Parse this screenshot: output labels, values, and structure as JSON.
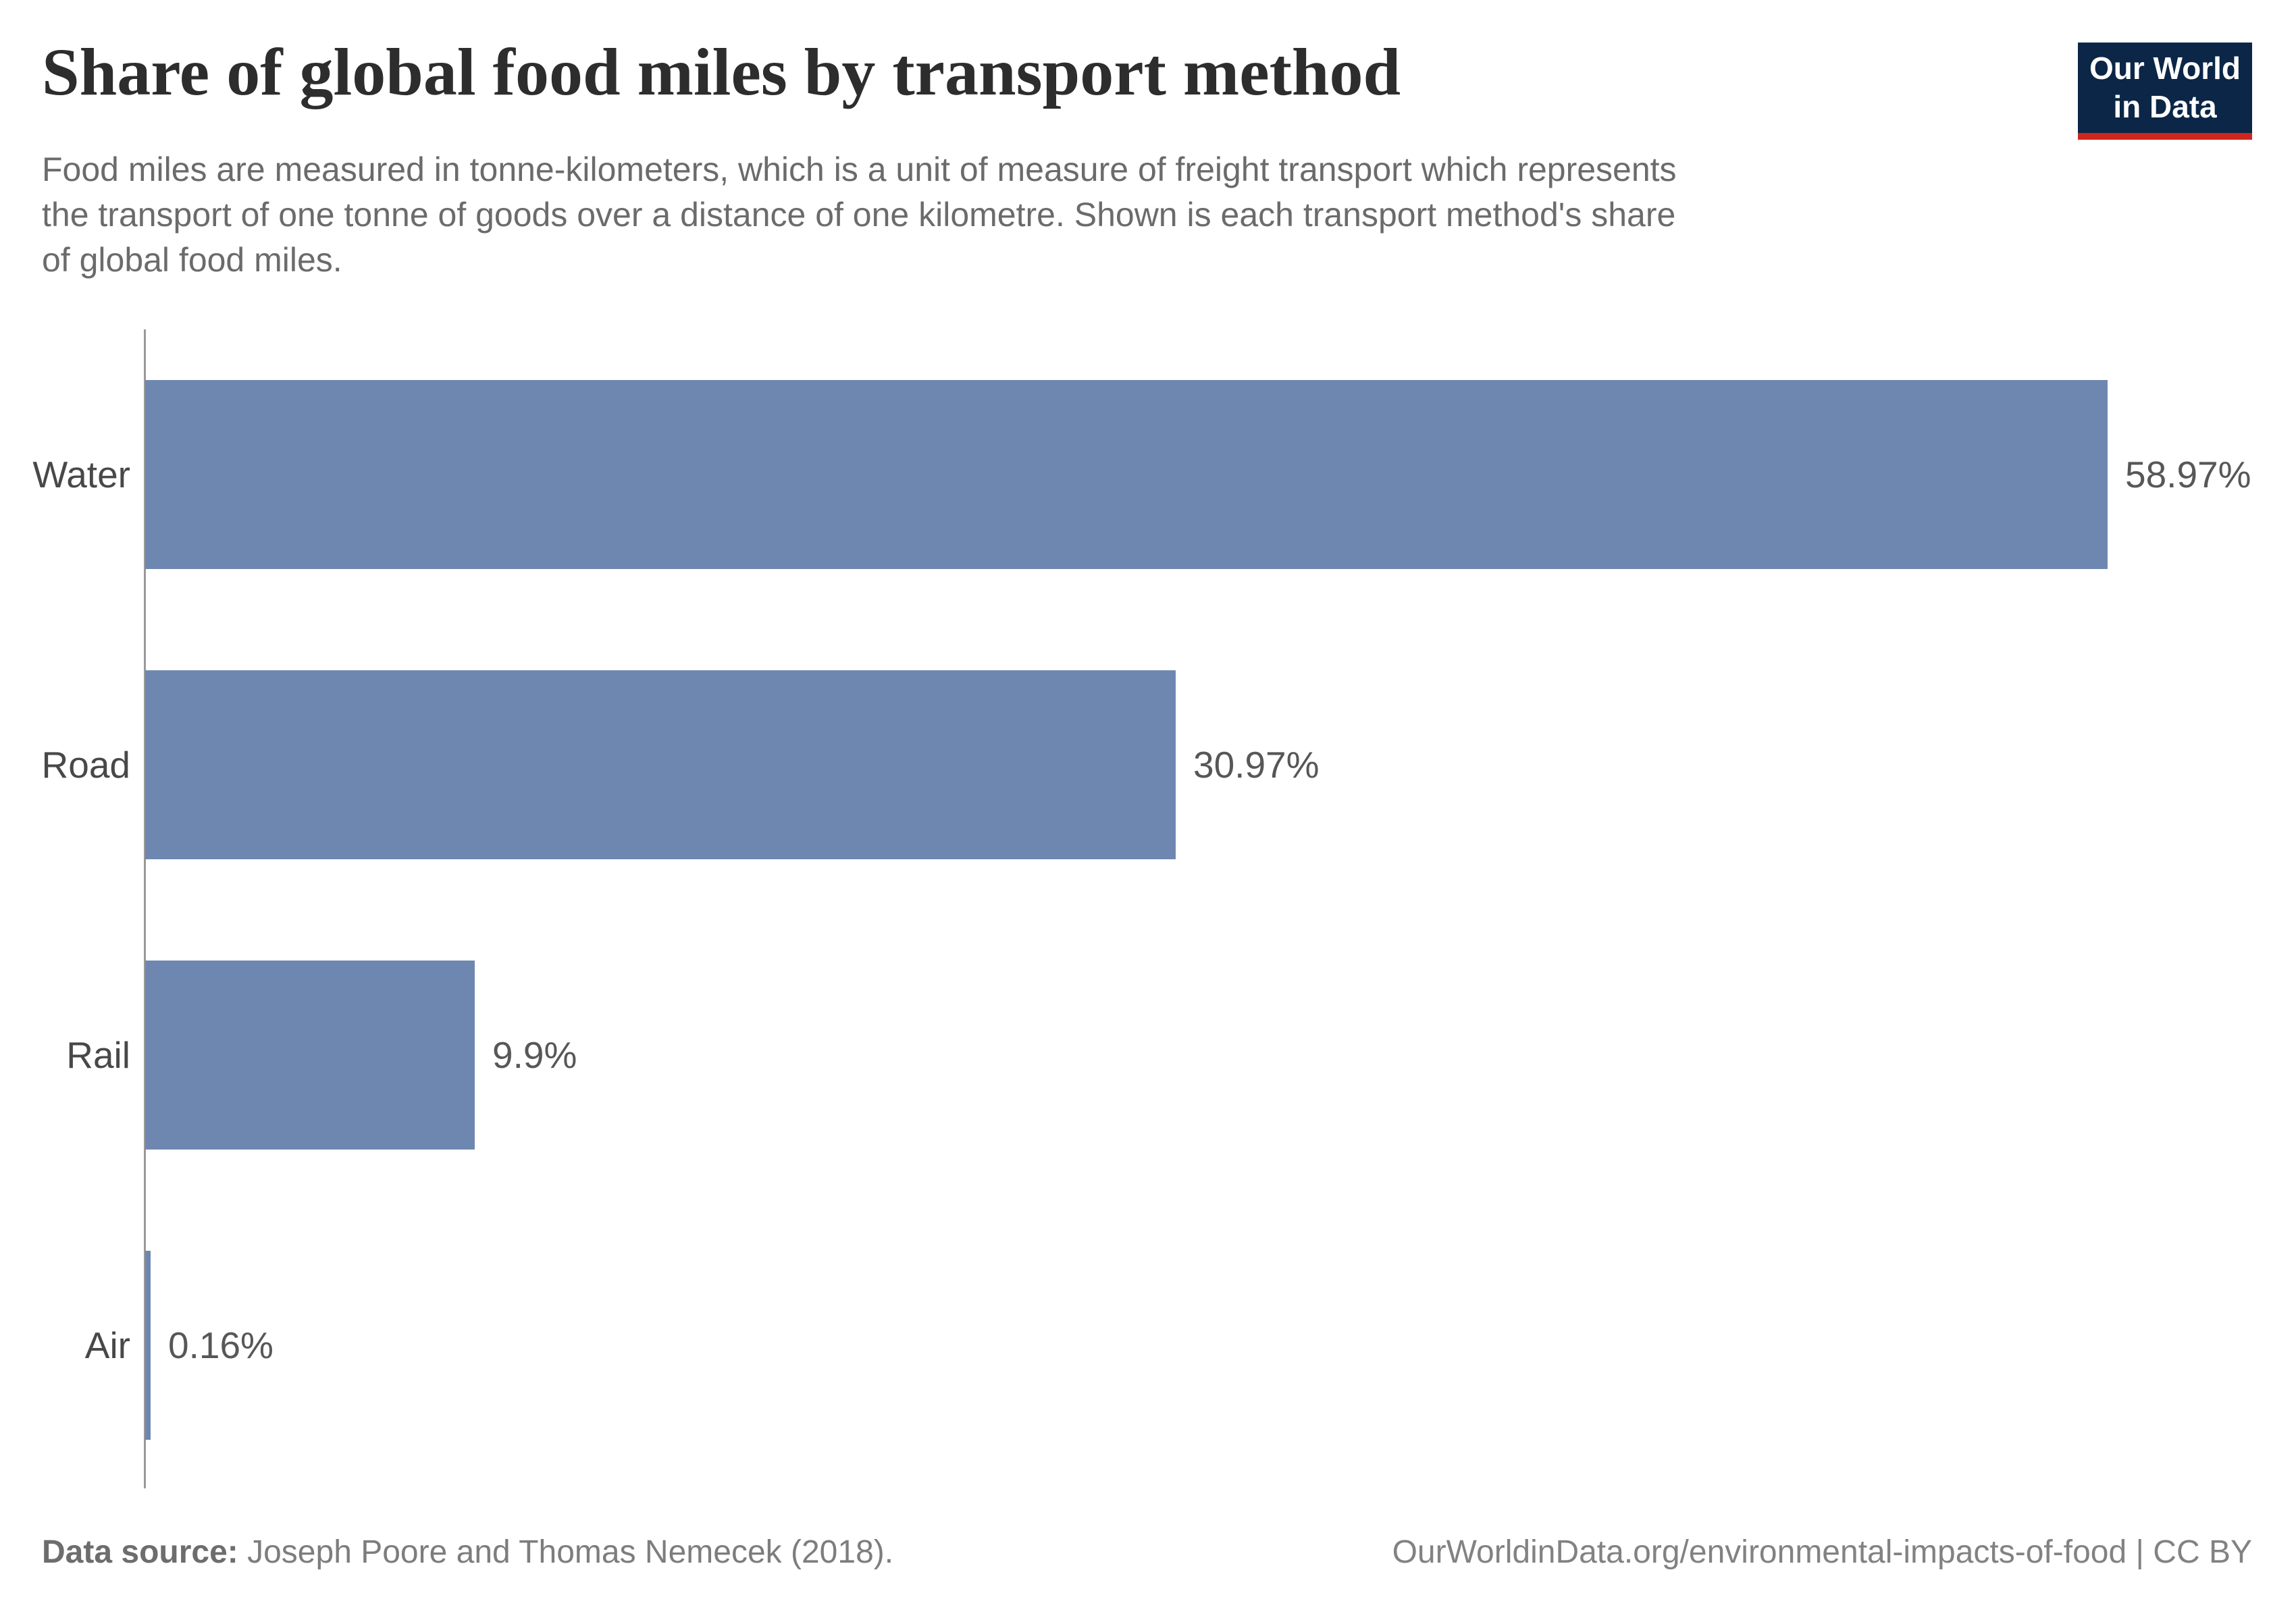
{
  "header": {
    "title": "Share of global food miles by transport method",
    "subtitle": "Food miles are measured in tonne-kilometers, which is a unit of measure of freight transport which represents\nthe transport of one tonne of goods over a distance of one kilometre. Shown is each transport method's share\nof global food miles."
  },
  "logo": {
    "line1": "Our World",
    "line2": "in Data",
    "bg_color": "#0b2647",
    "accent_color": "#ce261d"
  },
  "chart_data": {
    "type": "bar",
    "orientation": "horizontal",
    "title": "Share of global food miles by transport method",
    "categories": [
      "Water",
      "Road",
      "Rail",
      "Air"
    ],
    "values": [
      58.97,
      30.97,
      9.9,
      0.16
    ],
    "bars": [
      {
        "label": "Water",
        "value": 58.97,
        "value_label": "58.97%"
      },
      {
        "label": "Road",
        "value": 30.97,
        "value_label": "30.97%"
      },
      {
        "label": "Rail",
        "value": 9.9,
        "value_label": "9.9%"
      },
      {
        "label": "Air",
        "value": 0.16,
        "value_label": "0.16%"
      }
    ],
    "xlim": [
      0,
      60
    ],
    "grid": false,
    "legend": "none",
    "bar_color": "#6e87b1",
    "axis_color": "#999999"
  },
  "footer": {
    "source_prefix": "Data source:",
    "source_text": " Joseph Poore and Thomas Nemecek (2018).",
    "right_text": "OurWorldinData.org/environmental-impacts-of-food | CC BY"
  }
}
